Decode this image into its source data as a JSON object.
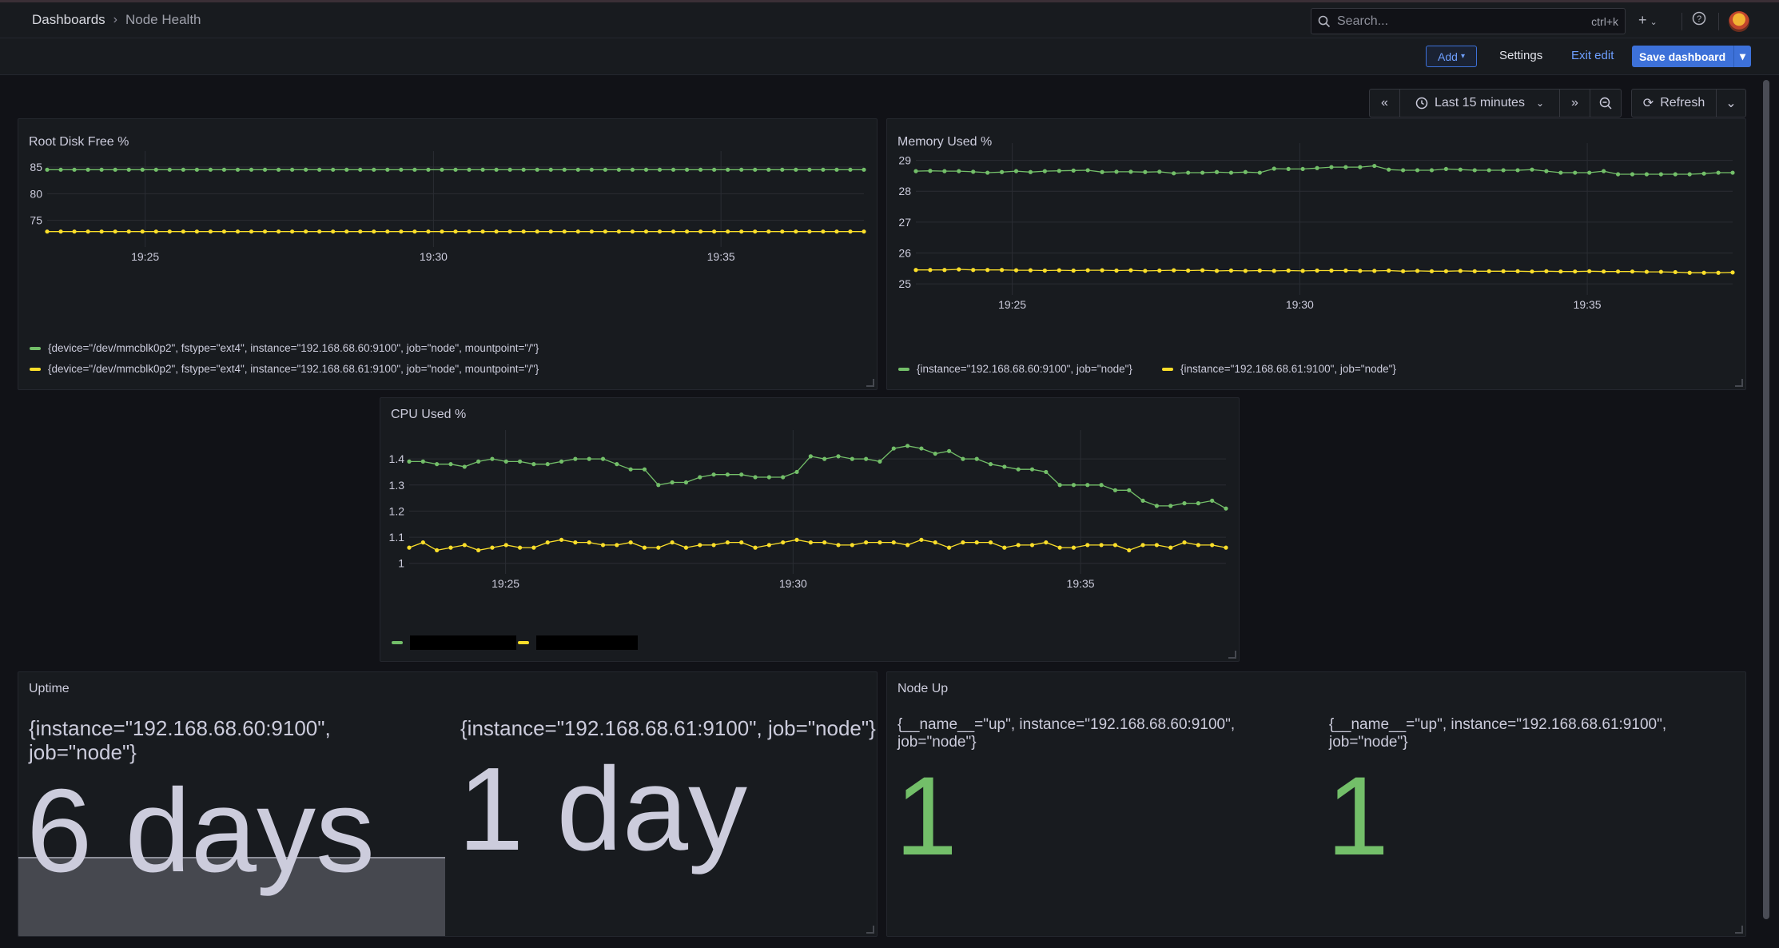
{
  "breadcrumb": {
    "root": "Dashboards",
    "current": "Node Health"
  },
  "search": {
    "placeholder": "Search...",
    "shortcut": "ctrl+k"
  },
  "toolbar": {
    "add": "Add",
    "settings": "Settings",
    "exit_edit": "Exit edit",
    "save": "Save dashboard"
  },
  "time": {
    "range": "Last 15 minutes",
    "refresh": "Refresh"
  },
  "colors": {
    "green": "#73bf69",
    "yellow": "#fade2a",
    "accent": "#3d71d9"
  },
  "panels": {
    "root_disk": {
      "title": "Root Disk Free %",
      "legend": [
        "{device=\"/dev/mmcblk0p2\", fstype=\"ext4\", instance=\"192.168.68.60:9100\", job=\"node\", mountpoint=\"/\"}",
        "{device=\"/dev/mmcblk0p2\", fstype=\"ext4\", instance=\"192.168.68.61:9100\", job=\"node\", mountpoint=\"/\"}"
      ]
    },
    "memory": {
      "title": "Memory Used %",
      "legend": [
        "{instance=\"192.168.68.60:9100\", job=\"node\"}",
        "{instance=\"192.168.68.61:9100\", job=\"node\"}"
      ]
    },
    "cpu": {
      "title": "CPU Used %"
    },
    "uptime": {
      "title": "Uptime",
      "items": [
        {
          "label": "{instance=\"192.168.68.60:9100\", job=\"node\"}",
          "value": "6 days"
        },
        {
          "label": "{instance=\"192.168.68.61:9100\", job=\"node\"}",
          "value": "1 day"
        }
      ]
    },
    "node_up": {
      "title": "Node Up",
      "items": [
        {
          "label": "{__name__=\"up\", instance=\"192.168.68.60:9100\", job=\"node\"}",
          "value": "1"
        },
        {
          "label": "{__name__=\"up\", instance=\"192.168.68.61:9100\", job=\"node\"}",
          "value": "1"
        }
      ]
    }
  },
  "chart_data": [
    {
      "id": "root_disk",
      "type": "line",
      "title": "Root Disk Free %",
      "xticks": [
        "19:25",
        "19:30",
        "19:35"
      ],
      "yticks": [
        75,
        80,
        85
      ],
      "ylim": [
        71.5,
        86.5
      ],
      "series": [
        {
          "color": "#73bf69",
          "values": [
            84.5,
            84.5,
            84.5,
            84.5,
            84.5,
            84.5,
            84.5,
            84.5,
            84.5,
            84.5,
            84.5,
            84.5,
            84.5,
            84.5,
            84.5,
            84.5,
            84.5,
            84.5,
            84.5,
            84.5,
            84.5,
            84.5,
            84.5,
            84.5,
            84.5,
            84.5,
            84.5,
            84.5,
            84.5,
            84.5,
            84.5,
            84.5,
            84.5,
            84.5,
            84.5,
            84.5,
            84.5,
            84.5,
            84.5,
            84.5,
            84.5,
            84.5,
            84.5,
            84.5,
            84.5,
            84.5,
            84.5,
            84.5,
            84.5,
            84.5,
            84.5,
            84.5,
            84.5,
            84.5,
            84.5,
            84.5,
            84.5,
            84.5,
            84.5,
            84.5,
            84.5
          ]
        },
        {
          "color": "#fade2a",
          "values": [
            72.9,
            72.9,
            72.9,
            72.9,
            72.9,
            72.9,
            72.9,
            72.9,
            72.9,
            72.9,
            72.9,
            72.9,
            72.9,
            72.9,
            72.9,
            72.9,
            72.9,
            72.9,
            72.9,
            72.9,
            72.9,
            72.9,
            72.9,
            72.9,
            72.9,
            72.9,
            72.9,
            72.9,
            72.9,
            72.9,
            72.9,
            72.9,
            72.9,
            72.9,
            72.9,
            72.9,
            72.9,
            72.9,
            72.9,
            72.9,
            72.9,
            72.9,
            72.9,
            72.9,
            72.9,
            72.9,
            72.9,
            72.9,
            72.9,
            72.9,
            72.9,
            72.9,
            72.9,
            72.9,
            72.9,
            72.9,
            72.9,
            72.9,
            72.9,
            72.9,
            72.9
          ]
        }
      ]
    },
    {
      "id": "memory",
      "type": "line",
      "title": "Memory Used %",
      "xticks": [
        "19:25",
        "19:30",
        "19:35"
      ],
      "yticks": [
        25,
        26,
        27,
        28,
        29
      ],
      "ylim": [
        24.9,
        29.3
      ],
      "series": [
        {
          "color": "#73bf69",
          "values": [
            28.65,
            28.66,
            28.65,
            28.65,
            28.63,
            28.6,
            28.62,
            28.65,
            28.62,
            28.65,
            28.66,
            28.67,
            28.68,
            28.62,
            28.63,
            28.63,
            28.62,
            28.63,
            28.58,
            28.6,
            28.6,
            28.62,
            28.6,
            28.62,
            28.6,
            28.73,
            28.72,
            28.72,
            28.75,
            28.78,
            28.78,
            28.78,
            28.82,
            28.7,
            28.68,
            28.68,
            28.68,
            28.72,
            28.7,
            28.68,
            28.68,
            28.68,
            28.68,
            28.7,
            28.65,
            28.6,
            28.6,
            28.6,
            28.65,
            28.55,
            28.55,
            28.55,
            28.55,
            28.55,
            28.55,
            28.57,
            28.6,
            28.6
          ]
        },
        {
          "color": "#fade2a",
          "values": [
            25.45,
            25.45,
            25.45,
            25.47,
            25.45,
            25.45,
            25.45,
            25.44,
            25.44,
            25.43,
            25.44,
            25.43,
            25.44,
            25.44,
            25.43,
            25.44,
            25.42,
            25.43,
            25.44,
            25.43,
            25.44,
            25.42,
            25.43,
            25.42,
            25.43,
            25.42,
            25.43,
            25.42,
            25.43,
            25.43,
            25.43,
            25.42,
            25.42,
            25.43,
            25.41,
            25.42,
            25.41,
            25.41,
            25.42,
            25.41,
            25.41,
            25.41,
            25.41,
            25.4,
            25.41,
            25.4,
            25.4,
            25.41,
            25.4,
            25.4,
            25.4,
            25.39,
            25.39,
            25.38,
            25.36,
            25.36,
            25.36,
            25.37
          ]
        }
      ]
    },
    {
      "id": "cpu",
      "type": "line",
      "title": "CPU Used %",
      "xticks": [
        "19:25",
        "19:30",
        "19:35"
      ],
      "yticks": [
        1,
        1.1,
        1.2,
        1.3,
        1.4
      ],
      "ylim": [
        0.99,
        1.48
      ],
      "series": [
        {
          "color": "#73bf69",
          "values": [
            1.39,
            1.39,
            1.38,
            1.38,
            1.37,
            1.39,
            1.4,
            1.39,
            1.39,
            1.38,
            1.38,
            1.39,
            1.4,
            1.4,
            1.4,
            1.38,
            1.36,
            1.36,
            1.3,
            1.31,
            1.31,
            1.33,
            1.34,
            1.34,
            1.34,
            1.33,
            1.33,
            1.33,
            1.35,
            1.41,
            1.4,
            1.41,
            1.4,
            1.4,
            1.39,
            1.44,
            1.45,
            1.44,
            1.42,
            1.43,
            1.4,
            1.4,
            1.38,
            1.37,
            1.36,
            1.36,
            1.35,
            1.3,
            1.3,
            1.3,
            1.3,
            1.28,
            1.28,
            1.24,
            1.22,
            1.22,
            1.23,
            1.23,
            1.24,
            1.21
          ]
        },
        {
          "color": "#fade2a",
          "values": [
            1.06,
            1.08,
            1.05,
            1.06,
            1.07,
            1.05,
            1.06,
            1.07,
            1.06,
            1.06,
            1.08,
            1.09,
            1.08,
            1.08,
            1.07,
            1.07,
            1.08,
            1.06,
            1.06,
            1.08,
            1.06,
            1.07,
            1.07,
            1.08,
            1.08,
            1.06,
            1.07,
            1.08,
            1.09,
            1.08,
            1.08,
            1.07,
            1.07,
            1.08,
            1.08,
            1.08,
            1.07,
            1.09,
            1.08,
            1.06,
            1.08,
            1.08,
            1.08,
            1.06,
            1.07,
            1.07,
            1.08,
            1.06,
            1.06,
            1.07,
            1.07,
            1.07,
            1.05,
            1.07,
            1.07,
            1.06,
            1.08,
            1.07,
            1.07,
            1.06
          ]
        }
      ]
    }
  ]
}
